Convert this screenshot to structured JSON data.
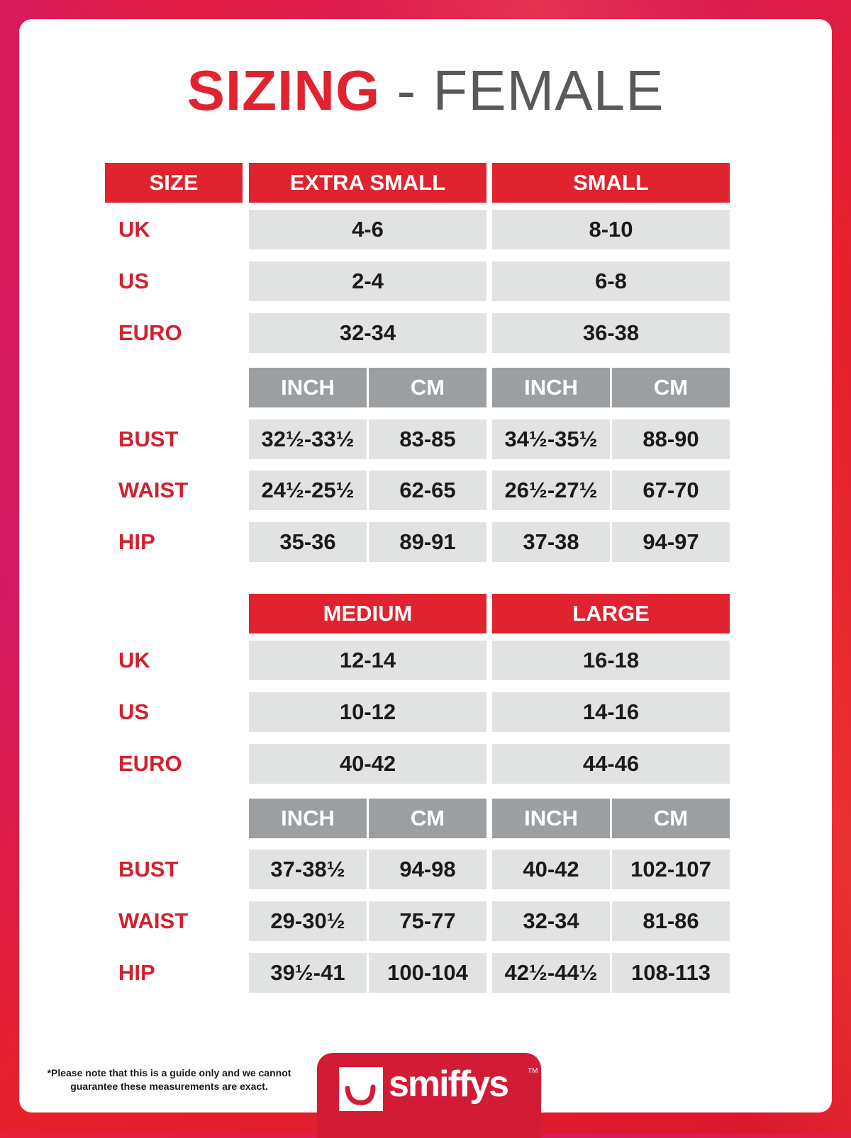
{
  "title": {
    "primary": "SIZING",
    "secondary": "- FEMALE"
  },
  "colors": {
    "accent": "#e1232f",
    "subheader": "#9c9fa2",
    "cell": "#e1e2e2",
    "label": "#d3202f"
  },
  "size_header": "SIZE",
  "row_labels": {
    "uk": "UK",
    "us": "US",
    "euro": "EURO",
    "bust": "BUST",
    "waist": "WAIST",
    "hip": "HIP"
  },
  "units": {
    "inch": "INCH",
    "cm": "CM"
  },
  "blocks": [
    {
      "sizes": [
        {
          "name": "EXTRA SMALL",
          "uk": "4-6",
          "us": "2-4",
          "euro": "32-34",
          "bust": [
            "32½-33½",
            "83-85"
          ],
          "waist": [
            "24½-25½",
            "62-65"
          ],
          "hip": [
            "35-36",
            "89-91"
          ]
        },
        {
          "name": "SMALL",
          "uk": "8-10",
          "us": "6-8",
          "euro": "36-38",
          "bust": [
            "34½-35½",
            "88-90"
          ],
          "waist": [
            "26½-27½",
            "67-70"
          ],
          "hip": [
            "37-38",
            "94-97"
          ]
        }
      ]
    },
    {
      "sizes": [
        {
          "name": "MEDIUM",
          "uk": "12-14",
          "us": "10-12",
          "euro": "40-42",
          "bust": [
            "37-38½",
            "94-98"
          ],
          "waist": [
            "29-30½",
            "75-77"
          ],
          "hip": [
            "39½-41",
            "100-104"
          ]
        },
        {
          "name": "LARGE",
          "uk": "16-18",
          "us": "14-16",
          "euro": "44-46",
          "bust": [
            "40-42",
            "102-107"
          ],
          "waist": [
            "32-34",
            "81-86"
          ],
          "hip": [
            "42½-44½",
            "108-113"
          ]
        }
      ]
    }
  ],
  "footer": {
    "note_line1": "*Please note that this is a guide only and we cannot",
    "note_line2": "guarantee these measurements are exact.",
    "brand": "smiffys",
    "trademark": "TM"
  }
}
